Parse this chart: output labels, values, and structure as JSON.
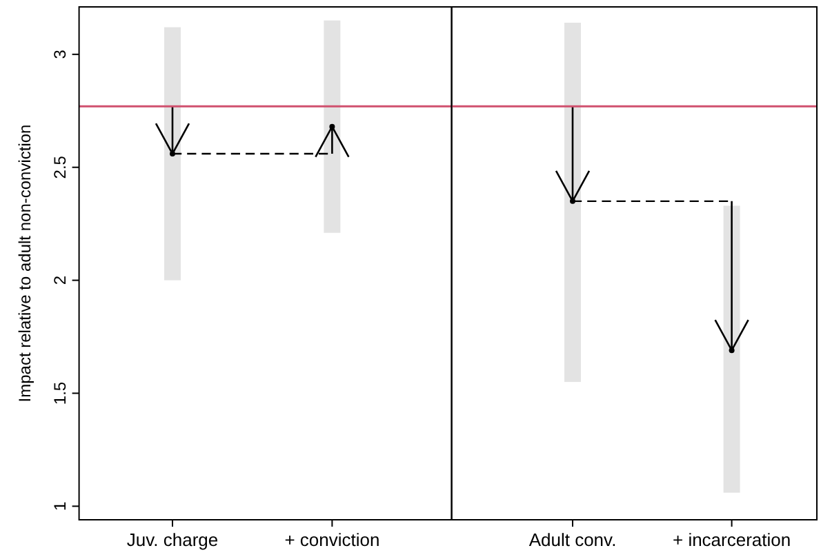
{
  "chart_data": [
    {
      "type": "bar",
      "ylabel": "Impact relative to adult non-conviction",
      "categories": [
        "Juv. charge",
        "+ conviction"
      ],
      "ylim": [
        0.94,
        3.21
      ],
      "yticks": [
        1,
        1.5,
        2,
        2.5,
        3
      ],
      "series": [
        {
          "color": "#e3e3e3",
          "base": [
            2.0,
            2.21
          ],
          "values": [
            1.12,
            0.94
          ]
        },
        {
          "type": "scatter",
          "color": "#000000",
          "marker": "circle",
          "values": [
            2.56,
            2.68
          ]
        },
        {
          "type": "line",
          "color": "#000000",
          "line_style": "dashed",
          "values": [
            2.56,
            2.56
          ]
        }
      ],
      "ref_lines": [
        {
          "axis": "y",
          "value": 2.77,
          "color": "#d0506e"
        }
      ]
    },
    {
      "type": "bar",
      "categories": [
        "Adult conv.",
        "+ incarceration"
      ],
      "tick_labels": "x",
      "ylim": [
        0.94,
        3.21
      ],
      "yticks": [
        1,
        1.5,
        2,
        2.5,
        3
      ],
      "series": [
        {
          "color": "#e3e3e3",
          "base": [
            1.55,
            1.06
          ],
          "values": [
            1.59,
            1.27
          ]
        },
        {
          "type": "scatter",
          "color": "#000000",
          "marker": "circle",
          "values": [
            2.35,
            1.69
          ]
        },
        {
          "type": "line",
          "color": "#000000",
          "line_style": "dashed",
          "values": [
            2.35,
            2.35
          ]
        }
      ],
      "ref_lines": [
        {
          "axis": "y",
          "value": 2.77,
          "color": "#d0506e"
        }
      ]
    }
  ]
}
